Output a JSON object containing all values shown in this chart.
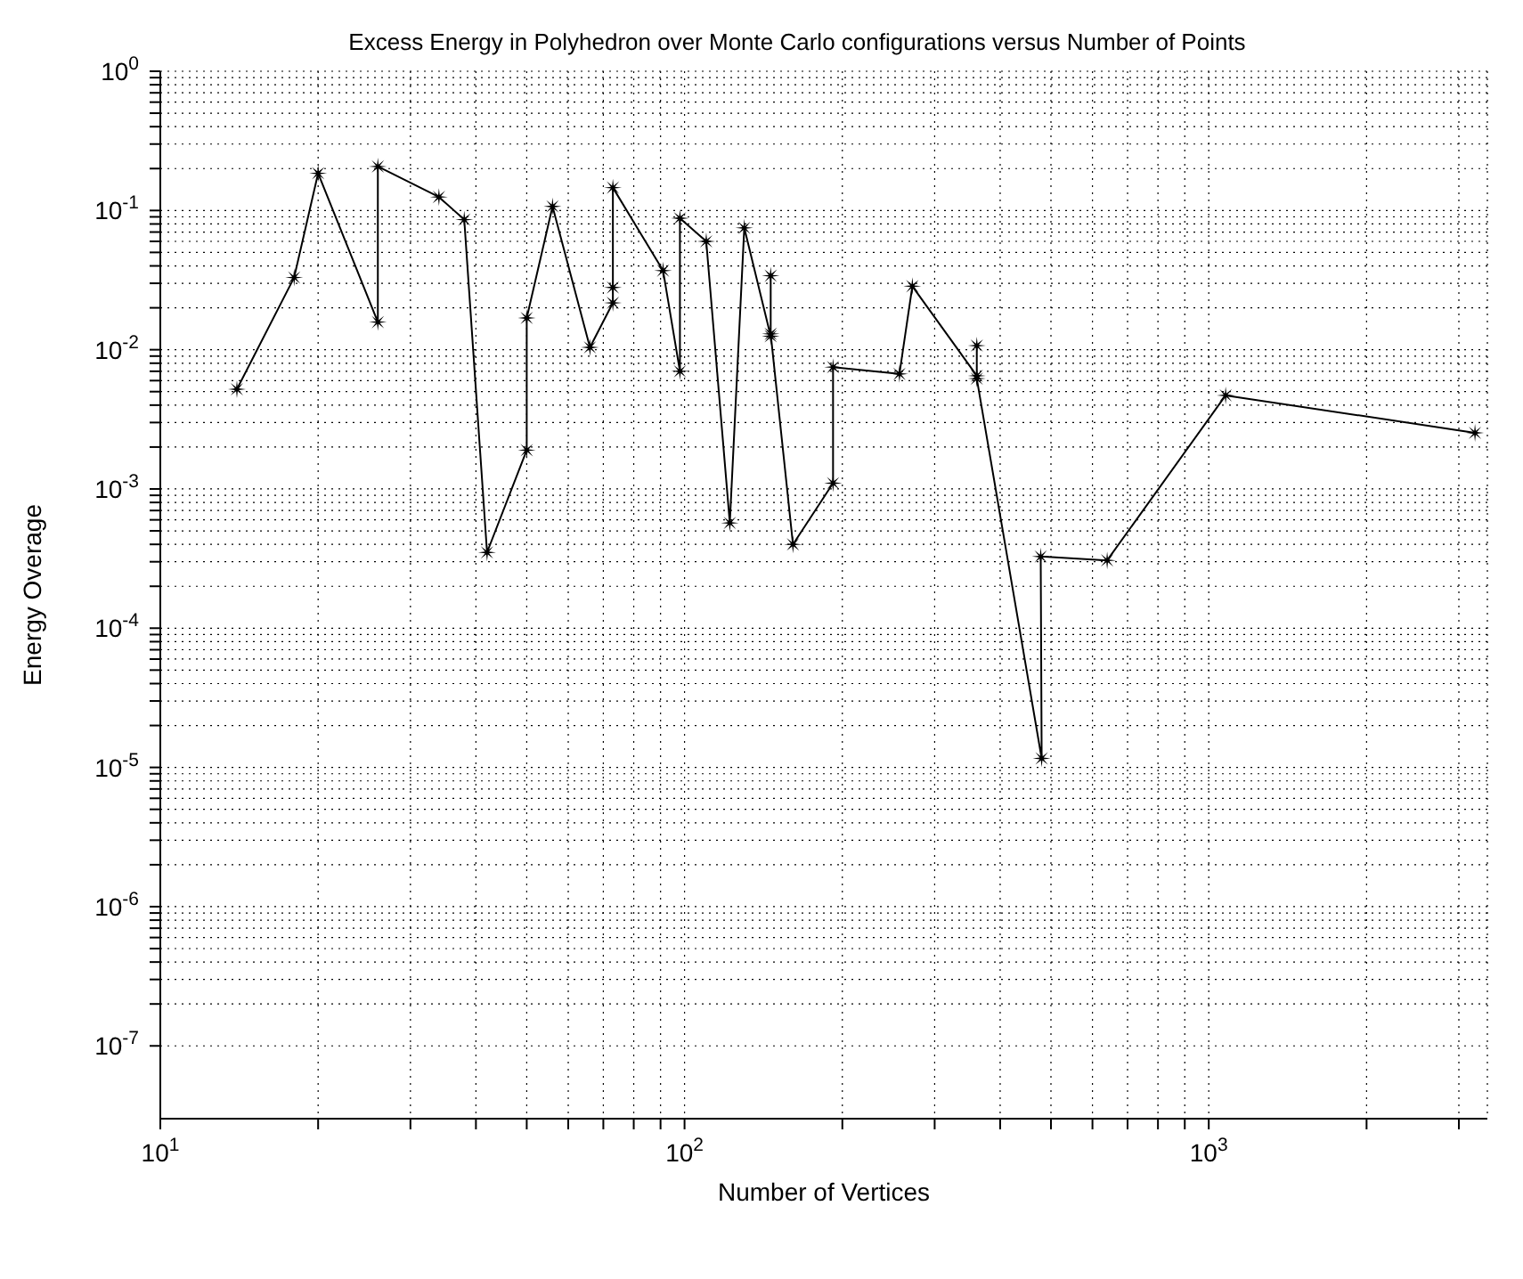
{
  "chart_data": {
    "type": "line",
    "title": "Excess Energy in Polyhedron over Monte Carlo configurations versus Number of Points",
    "xlabel": "Number of Vertices",
    "ylabel": "Energy Overage",
    "log": "xy",
    "grid": true,
    "marker": "star",
    "line_style": "solid",
    "xlim": [
      10,
      3400
    ],
    "xticks": [
      {
        "value": 10,
        "label": "10$^{1}$"
      },
      {
        "value": 20,
        "label": null
      },
      {
        "value": 30,
        "label": null
      },
      {
        "value": 40,
        "label": null
      },
      {
        "value": 50,
        "label": null
      },
      {
        "value": 60,
        "label": null
      },
      {
        "value": 70,
        "label": null
      },
      {
        "value": 80,
        "label": null
      },
      {
        "value": 90,
        "label": null
      },
      {
        "value": 100,
        "label": "10$^{2}$"
      },
      {
        "value": 200,
        "label": null
      },
      {
        "value": 300,
        "label": null
      },
      {
        "value": 400,
        "label": null
      },
      {
        "value": 500,
        "label": null
      },
      {
        "value": 600,
        "label": null
      },
      {
        "value": 700,
        "label": null
      },
      {
        "value": 800,
        "label": null
      },
      {
        "value": 900,
        "label": null
      },
      {
        "value": 1000,
        "label": "10$^{3}$"
      },
      {
        "value": 2000,
        "label": null
      },
      {
        "value": 3000,
        "label": null
      }
    ],
    "ylim": [
      3e-08,
      1
    ],
    "yticks": [
      {
        "value": 1e-07,
        "label": "10$^{-7}$"
      },
      {
        "value": 2e-07,
        "label": null
      },
      {
        "value": 3e-07,
        "label": null
      },
      {
        "value": 4e-07,
        "label": null
      },
      {
        "value": 5e-07,
        "label": null
      },
      {
        "value": 6e-07,
        "label": null
      },
      {
        "value": 7e-07,
        "label": null
      },
      {
        "value": 8e-07,
        "label": null
      },
      {
        "value": 9e-07,
        "label": null
      },
      {
        "value": 1e-06,
        "label": "10$^{-6}$"
      },
      {
        "value": 2e-06,
        "label": null
      },
      {
        "value": 3e-06,
        "label": null
      },
      {
        "value": 4e-06,
        "label": null
      },
      {
        "value": 5e-06,
        "label": null
      },
      {
        "value": 6e-06,
        "label": null
      },
      {
        "value": 7e-06,
        "label": null
      },
      {
        "value": 8e-06,
        "label": null
      },
      {
        "value": 9e-06,
        "label": null
      },
      {
        "value": 1e-05,
        "label": "10$^{-5}$"
      },
      {
        "value": 2e-05,
        "label": null
      },
      {
        "value": 3e-05,
        "label": null
      },
      {
        "value": 4e-05,
        "label": null
      },
      {
        "value": 5e-05,
        "label": null
      },
      {
        "value": 6e-05,
        "label": null
      },
      {
        "value": 7e-05,
        "label": null
      },
      {
        "value": 8e-05,
        "label": null
      },
      {
        "value": 9e-05,
        "label": null
      },
      {
        "value": 0.0001,
        "label": "10$^{-4}$"
      },
      {
        "value": 0.0002,
        "label": null
      },
      {
        "value": 0.0003,
        "label": null
      },
      {
        "value": 0.0004,
        "label": null
      },
      {
        "value": 0.0005,
        "label": null
      },
      {
        "value": 0.0006,
        "label": null
      },
      {
        "value": 0.0007,
        "label": null
      },
      {
        "value": 0.0008,
        "label": null
      },
      {
        "value": 0.0009,
        "label": null
      },
      {
        "value": 0.001,
        "label": "10$^{-3}$"
      },
      {
        "value": 0.002,
        "label": null
      },
      {
        "value": 0.003,
        "label": null
      },
      {
        "value": 0.004,
        "label": null
      },
      {
        "value": 0.005,
        "label": null
      },
      {
        "value": 0.006,
        "label": null
      },
      {
        "value": 0.007,
        "label": null
      },
      {
        "value": 0.008,
        "label": null
      },
      {
        "value": 0.009,
        "label": null
      },
      {
        "value": 0.01,
        "label": "10$^{-2}$"
      },
      {
        "value": 0.02,
        "label": null
      },
      {
        "value": 0.03,
        "label": null
      },
      {
        "value": 0.04,
        "label": null
      },
      {
        "value": 0.05,
        "label": null
      },
      {
        "value": 0.06,
        "label": null
      },
      {
        "value": 0.07,
        "label": null
      },
      {
        "value": 0.08,
        "label": null
      },
      {
        "value": 0.09,
        "label": null
      },
      {
        "value": 0.1,
        "label": "10$^{-1}$"
      },
      {
        "value": 0.2,
        "label": null
      },
      {
        "value": 0.3,
        "label": null
      },
      {
        "value": 0.4,
        "label": null
      },
      {
        "value": 0.5,
        "label": null
      },
      {
        "value": 0.6,
        "label": null
      },
      {
        "value": 0.7,
        "label": null
      },
      {
        "value": 0.8,
        "label": null
      },
      {
        "value": 0.9,
        "label": null
      },
      {
        "value": 1,
        "label": "10$^{0}$"
      }
    ],
    "series": [
      {
        "color": "#000000",
        "x": [
          14,
          18,
          20,
          26,
          26,
          34,
          38,
          42,
          50,
          50,
          56,
          66,
          73,
          73,
          73,
          91,
          98,
          98,
          110,
          122,
          130,
          146,
          146,
          146,
          161,
          192,
          192,
          257,
          272,
          361,
          361,
          361,
          480,
          478,
          640,
          1077,
          3220
        ],
        "values": [
          0.0052,
          0.033,
          0.185,
          0.0158,
          0.207,
          0.125,
          0.086,
          0.00035,
          0.0019,
          0.0169,
          0.107,
          0.0104,
          0.0217,
          0.028,
          0.146,
          0.037,
          0.007,
          0.088,
          0.06,
          0.00057,
          0.075,
          0.0125,
          0.034,
          0.013,
          0.0004,
          0.0011,
          0.0075,
          0.0067,
          0.0286,
          0.0065,
          0.0107,
          0.0062,
          1.16e-05,
          0.000327,
          0.000307,
          0.0047,
          0.00253
        ]
      }
    ]
  }
}
